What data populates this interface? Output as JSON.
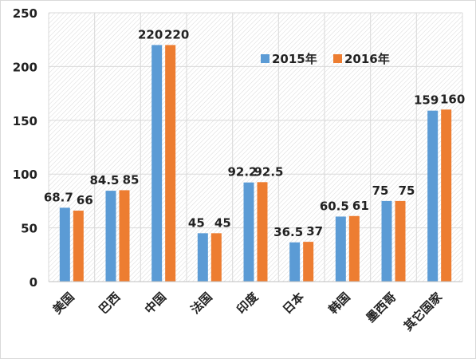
{
  "chart_data": {
    "type": "bar",
    "title": "",
    "xlabel": "",
    "ylabel": "",
    "ylim": [
      0,
      250
    ],
    "yticks": [
      0,
      50,
      100,
      150,
      200,
      250
    ],
    "grid": true,
    "legend_position": "top-right",
    "categories": [
      "美国",
      "巴西",
      "中国",
      "法国",
      "印度",
      "日本",
      "韩国",
      "墨西哥",
      "其它国家"
    ],
    "series": [
      {
        "name": "2015年",
        "color": "#5b9bd5",
        "values": [
          68.7,
          84.5,
          220,
          45,
          92.2,
          36.5,
          60.5,
          75,
          159
        ],
        "labels": [
          "68.7",
          "84.5",
          "220",
          "45",
          "92.2",
          "36.5",
          "60.5",
          "75",
          "159"
        ]
      },
      {
        "name": "2016年",
        "color": "#ed7d31",
        "values": [
          66,
          85,
          220,
          45,
          92.5,
          37,
          61,
          75,
          160
        ],
        "labels": [
          "66",
          "85",
          "220",
          "45",
          "92.5",
          "37",
          "61",
          "75",
          "160"
        ]
      }
    ]
  }
}
